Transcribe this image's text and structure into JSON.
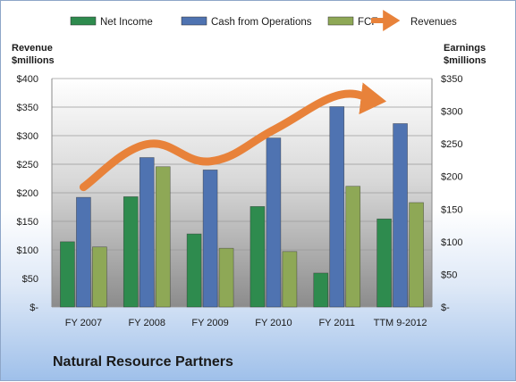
{
  "chart_data": {
    "type": "bar",
    "title": "Natural Resource Partners",
    "ylabel_left": [
      "Revenue",
      "$millions"
    ],
    "ylabel_right": [
      "Earnings",
      "$millions"
    ],
    "categories": [
      "FY 2007",
      "FY 2008",
      "FY 2009",
      "FY 2010",
      "FY 2011",
      "TTM 9-2012"
    ],
    "left_axis": {
      "min": 0,
      "max": 400,
      "step": 50,
      "ticks": [
        "$-",
        "$50",
        "$100",
        "$150",
        "$200",
        "$250",
        "$300",
        "$350",
        "$400"
      ]
    },
    "right_axis": {
      "min": 0,
      "max": 350,
      "step": 50,
      "ticks": [
        "$-",
        "$50",
        "$100",
        "$150",
        "$200",
        "$250",
        "$300",
        "$350"
      ]
    },
    "bar_axis": "right",
    "series": [
      {
        "name": "Net Income",
        "values": [
          100,
          169,
          112,
          154,
          52,
          135
        ],
        "color": "#2e8b4e"
      },
      {
        "name": "Cash from Operations",
        "values": [
          168,
          229,
          210,
          259,
          307,
          281
        ],
        "color": "#4f73b1"
      },
      {
        "name": "FCF",
        "values": [
          92,
          215,
          90,
          85,
          185,
          160
        ],
        "color": "#8ea856"
      }
    ],
    "line_series": {
      "name": "Revenues",
      "axis": "left",
      "values": [
        210,
        285,
        255,
        310,
        370,
        370
      ],
      "color": "#e8823a"
    },
    "legend_position": "top",
    "grid": true
  }
}
